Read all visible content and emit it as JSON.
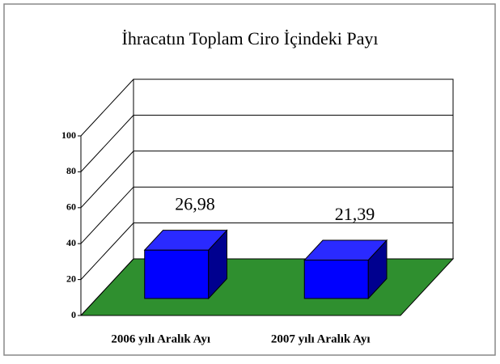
{
  "chart_data": {
    "type": "bar3d",
    "title": "İhracatın Toplam Ciro İçindeki Payı",
    "categories": [
      "2006 yılı Aralık Ayı",
      "2007 yılı Aralık Ayı"
    ],
    "values": [
      26.98,
      21.39
    ],
    "value_labels": [
      "26,98",
      "21,39"
    ],
    "color": "#0000ff",
    "floor_color": "#2f8f2f",
    "ylim": [
      0,
      100
    ],
    "yticks": [
      0,
      20,
      40,
      60,
      80,
      100
    ],
    "grid": true
  }
}
